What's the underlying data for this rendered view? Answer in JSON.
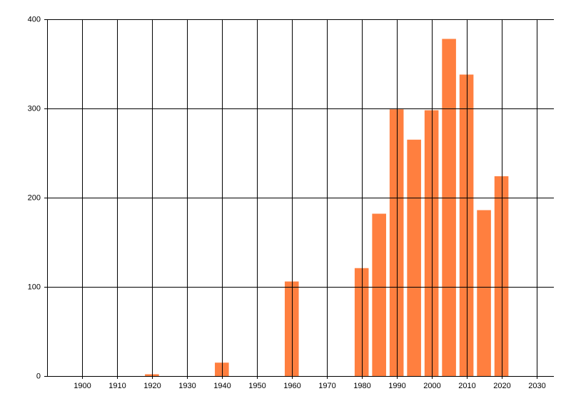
{
  "chart_data": {
    "type": "bar",
    "color": "#ff7f3f",
    "x": [
      1920,
      1940,
      1960,
      1980,
      1985,
      1990,
      1995,
      2000,
      2005,
      2010,
      2015,
      2020
    ],
    "values": [
      2,
      15,
      106,
      121,
      182,
      299,
      265,
      298,
      378,
      338,
      186,
      224
    ],
    "bar_width": 4,
    "xlim": [
      1890,
      2035
    ],
    "xticks": [
      1900,
      1910,
      1920,
      1930,
      1940,
      1950,
      1960,
      1970,
      1980,
      1990,
      2000,
      2010,
      2020,
      2030
    ],
    "ylim": [
      0,
      400
    ],
    "yticks": [
      0,
      100,
      200,
      300,
      400
    ],
    "grid": true
  }
}
